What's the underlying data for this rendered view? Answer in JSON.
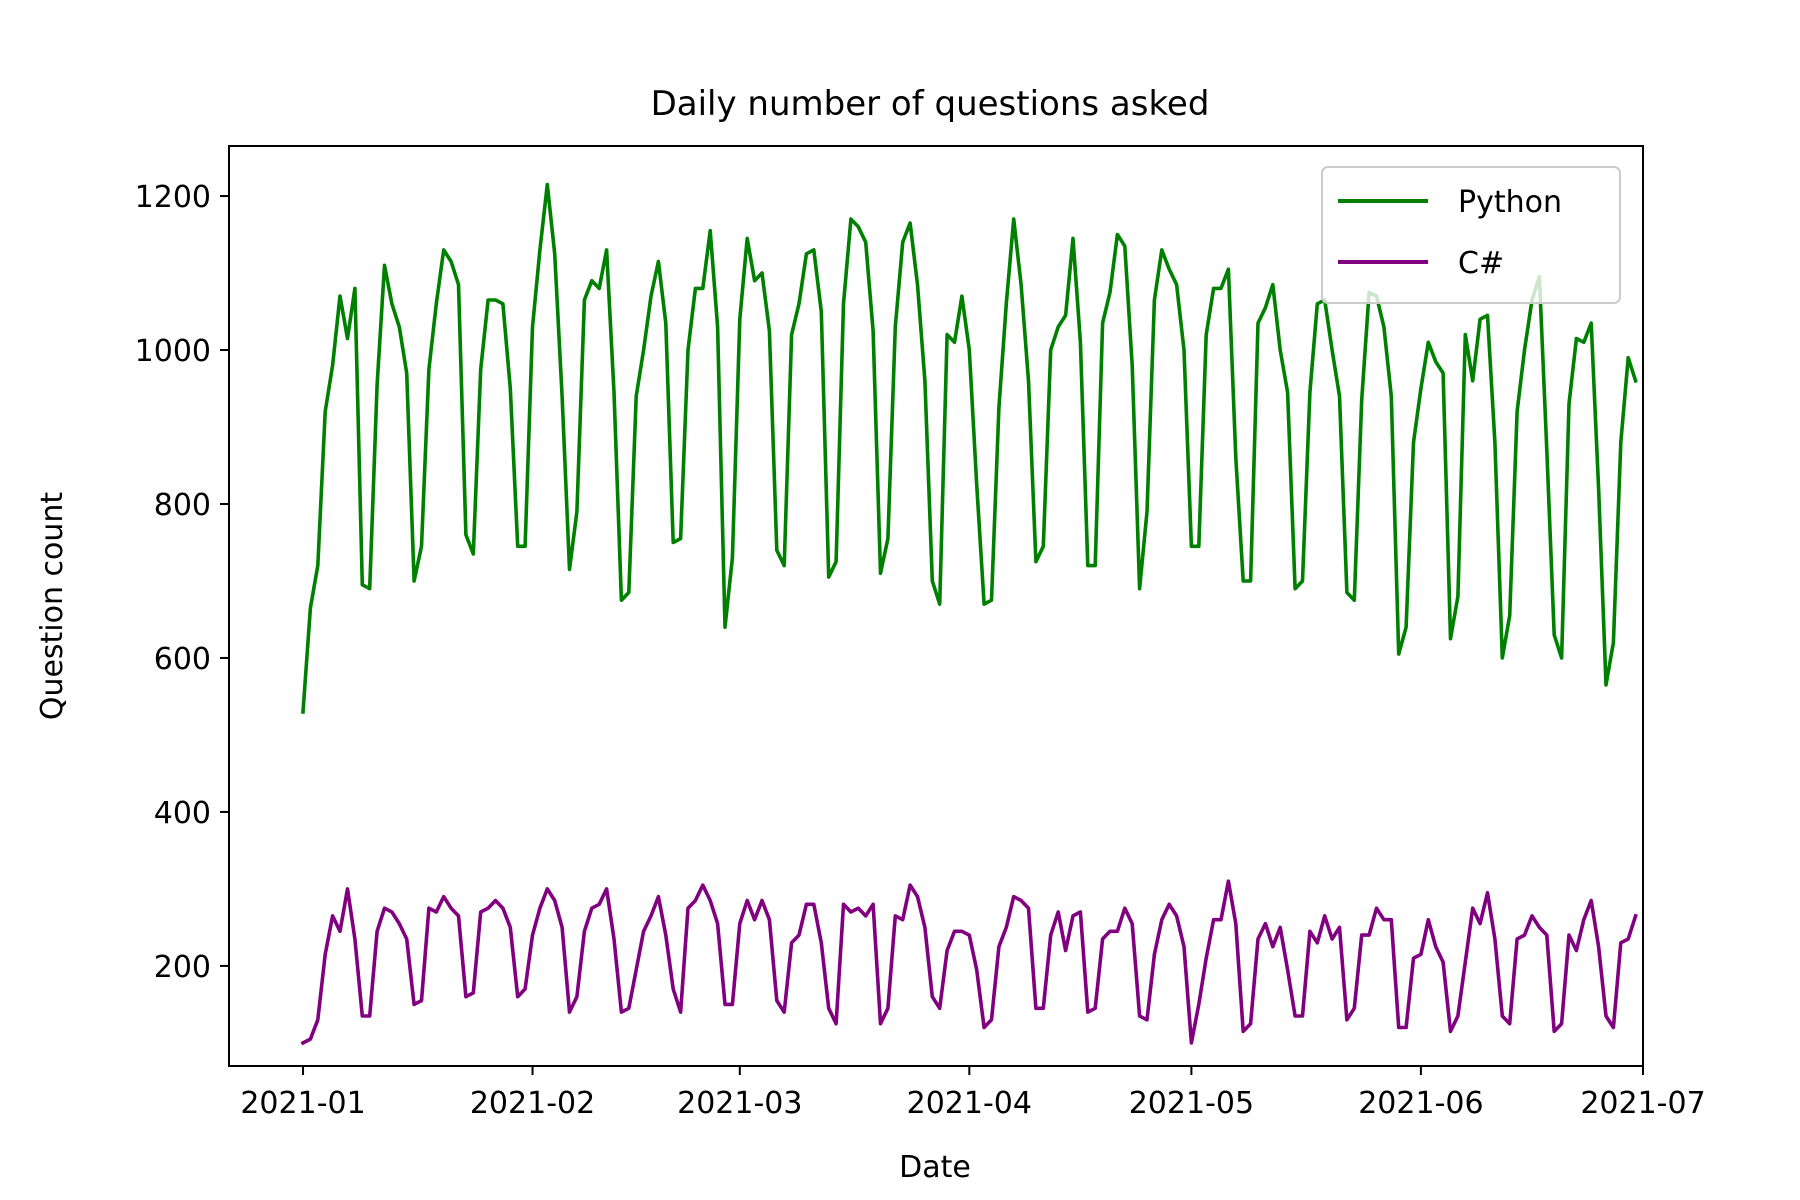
{
  "chart_data": {
    "type": "line",
    "title": "Daily number of questions asked",
    "xlabel": "Date",
    "ylabel": "Question count",
    "xlim": [
      "2020-12-22",
      "2021-07-01"
    ],
    "ylim": [
      70,
      1265
    ],
    "x_ticks": [
      "2021-01-01",
      "2021-02-01",
      "2021-03-01",
      "2021-04-01",
      "2021-05-01",
      "2021-06-01",
      "2021-07-01"
    ],
    "x_tick_labels": [
      "2021-01",
      "2021-02",
      "2021-03",
      "2021-04",
      "2021-05",
      "2021-06",
      "2021-07"
    ],
    "y_ticks": [
      200,
      400,
      600,
      800,
      1000,
      1200
    ],
    "grid": false,
    "legend_position": "top-right",
    "x_start": "2021-01-01",
    "x_step_days": 1,
    "series": [
      {
        "name": "Python",
        "color": "#008000",
        "values": [
          530,
          665,
          720,
          920,
          980,
          1070,
          1015,
          1080,
          695,
          690,
          955,
          1110,
          1060,
          1030,
          970,
          700,
          745,
          975,
          1060,
          1130,
          1115,
          1085,
          760,
          735,
          975,
          1065,
          1065,
          1060,
          950,
          745,
          745,
          1030,
          1130,
          1215,
          1125,
          940,
          715,
          790,
          1065,
          1090,
          1080,
          1130,
          945,
          675,
          685,
          940,
          1000,
          1070,
          1115,
          1035,
          750,
          755,
          1000,
          1080,
          1080,
          1155,
          1030,
          640,
          730,
          1040,
          1145,
          1090,
          1100,
          1025,
          740,
          720,
          1020,
          1060,
          1125,
          1130,
          1050,
          705,
          725,
          1060,
          1170,
          1160,
          1140,
          1025,
          710,
          755,
          1030,
          1140,
          1165,
          1085,
          960,
          700,
          670,
          1020,
          1010,
          1070,
          1000,
          825,
          670,
          675,
          925,
          1060,
          1170,
          1085,
          960,
          725,
          745,
          1000,
          1030,
          1045,
          1145,
          1010,
          720,
          720,
          1035,
          1075,
          1150,
          1135,
          980,
          690,
          790,
          1065,
          1130,
          1105,
          1085,
          1000,
          745,
          745,
          1020,
          1080,
          1080,
          1105,
          860,
          700,
          700,
          1035,
          1055,
          1085,
          1000,
          945,
          690,
          700,
          945,
          1060,
          1065,
          1000,
          940,
          685,
          675,
          935,
          1075,
          1070,
          1030,
          940,
          605,
          640,
          880,
          950,
          1010,
          985,
          970,
          625,
          680,
          1020,
          960,
          1040,
          1045,
          880,
          600,
          655,
          920,
          1000,
          1065,
          1095,
          870,
          630,
          600,
          930,
          1015,
          1010,
          1035,
          820,
          565,
          620,
          880,
          990,
          960
        ]
      },
      {
        "name": "C#",
        "color": "#800080",
        "values": [
          100,
          105,
          130,
          215,
          265,
          245,
          300,
          235,
          135,
          135,
          245,
          275,
          270,
          255,
          235,
          150,
          155,
          275,
          270,
          290,
          275,
          265,
          160,
          165,
          270,
          275,
          285,
          275,
          250,
          160,
          170,
          240,
          275,
          300,
          285,
          250,
          140,
          160,
          245,
          275,
          280,
          300,
          235,
          140,
          145,
          195,
          245,
          265,
          290,
          240,
          170,
          140,
          275,
          285,
          305,
          285,
          255,
          150,
          150,
          255,
          285,
          260,
          285,
          260,
          155,
          140,
          230,
          240,
          280,
          280,
          230,
          145,
          125,
          280,
          270,
          275,
          265,
          280,
          125,
          145,
          265,
          260,
          305,
          290,
          250,
          160,
          145,
          220,
          245,
          245,
          240,
          195,
          120,
          130,
          225,
          250,
          290,
          285,
          275,
          145,
          145,
          240,
          270,
          220,
          265,
          270,
          140,
          145,
          235,
          245,
          245,
          275,
          255,
          135,
          130,
          215,
          260,
          280,
          265,
          225,
          100,
          150,
          210,
          260,
          260,
          310,
          255,
          115,
          125,
          235,
          255,
          225,
          250,
          195,
          135,
          135,
          245,
          230,
          265,
          235,
          250,
          130,
          145,
          240,
          240,
          275,
          260,
          260,
          120,
          120,
          210,
          215,
          260,
          225,
          205,
          115,
          135,
          205,
          275,
          255,
          295,
          235,
          135,
          125,
          235,
          240,
          265,
          250,
          240,
          115,
          125,
          240,
          220,
          260,
          285,
          225,
          135,
          120,
          230,
          235,
          265
        ]
      }
    ]
  }
}
